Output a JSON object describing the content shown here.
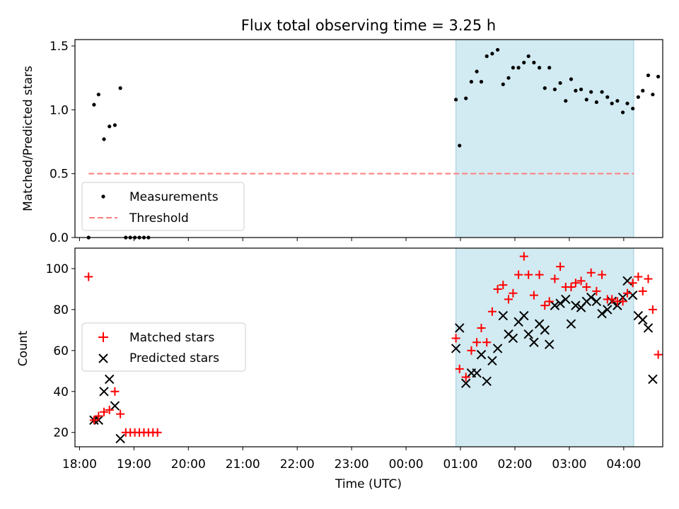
{
  "title": "Flux total observing time = 3.25 h",
  "colors": {
    "measurement": "#000000",
    "threshold": "#ff7f7f",
    "matched": "#ff0000",
    "predicted": "#000000",
    "shade": "#add8e6"
  },
  "chart_data": [
    {
      "type": "scatter",
      "panel": "top",
      "ylabel": "Matched/Predicted stars",
      "xlabel": "",
      "ylim": [
        0,
        1.55
      ],
      "yticks": [
        "0.0",
        "0.5",
        "1.0",
        "1.5"
      ],
      "shaded_region": [
        "00:55",
        "04:11"
      ],
      "threshold": {
        "name": "Threshold",
        "value": 0.5,
        "x_range": [
          "18:10",
          "04:11"
        ]
      },
      "legend": {
        "placement": "lower-left",
        "entries": [
          "Measurements",
          "Threshold"
        ]
      },
      "series": [
        {
          "name": "Measurements",
          "points": [
            [
              "18:10",
              0.0
            ],
            [
              "18:16",
              1.04
            ],
            [
              "18:21",
              1.12
            ],
            [
              "18:27",
              0.77
            ],
            [
              "18:33",
              0.87
            ],
            [
              "18:39",
              0.88
            ],
            [
              "18:45",
              1.17
            ],
            [
              "18:51",
              0.0
            ],
            [
              "18:56",
              0.0
            ],
            [
              "19:01",
              0.0
            ],
            [
              "19:06",
              0.0
            ],
            [
              "19:11",
              0.0
            ],
            [
              "19:16",
              0.0
            ],
            [
              "00:55",
              1.08
            ],
            [
              "00:59",
              0.72
            ],
            [
              "01:06",
              1.09
            ],
            [
              "01:12",
              1.22
            ],
            [
              "01:18",
              1.3
            ],
            [
              "01:23",
              1.22
            ],
            [
              "01:29",
              1.42
            ],
            [
              "01:35",
              1.44
            ],
            [
              "01:41",
              1.47
            ],
            [
              "01:47",
              1.2
            ],
            [
              "01:53",
              1.25
            ],
            [
              "01:58",
              1.33
            ],
            [
              "02:04",
              1.33
            ],
            [
              "02:10",
              1.37
            ],
            [
              "02:15",
              1.42
            ],
            [
              "02:21",
              1.37
            ],
            [
              "02:27",
              1.33
            ],
            [
              "02:33",
              1.17
            ],
            [
              "02:38",
              1.33
            ],
            [
              "02:44",
              1.16
            ],
            [
              "02:50",
              1.21
            ],
            [
              "02:56",
              1.07
            ],
            [
              "03:02",
              1.24
            ],
            [
              "03:07",
              1.15
            ],
            [
              "03:13",
              1.16
            ],
            [
              "03:19",
              1.08
            ],
            [
              "03:24",
              1.14
            ],
            [
              "03:30",
              1.06
            ],
            [
              "03:36",
              1.14
            ],
            [
              "03:42",
              1.1
            ],
            [
              "03:47",
              1.05
            ],
            [
              "03:53",
              1.07
            ],
            [
              "03:59",
              0.98
            ],
            [
              "04:04",
              1.05
            ],
            [
              "04:10",
              1.01
            ],
            [
              "04:16",
              1.1
            ],
            [
              "04:21",
              1.15
            ],
            [
              "04:27",
              1.27
            ],
            [
              "04:32",
              1.12
            ],
            [
              "04:38",
              1.26
            ]
          ]
        }
      ]
    },
    {
      "type": "scatter",
      "panel": "bottom",
      "ylabel": "Count",
      "xlabel": "Time (UTC)",
      "ylim": [
        13,
        110
      ],
      "yticks": [
        "20",
        "40",
        "60",
        "80",
        "100"
      ],
      "xticks": [
        "18:00",
        "19:00",
        "20:00",
        "21:00",
        "22:00",
        "23:00",
        "00:00",
        "01:00",
        "02:00",
        "03:00",
        "04:00"
      ],
      "shaded_region": [
        "00:55",
        "04:11"
      ],
      "legend": {
        "placement": "center-left",
        "entries": [
          "Matched stars",
          "Predicted stars"
        ]
      },
      "series": [
        {
          "name": "Matched stars",
          "marker": "+",
          "points": [
            [
              "18:10",
              96
            ],
            [
              "18:16",
              26
            ],
            [
              "18:21",
              28
            ],
            [
              "18:27",
              30
            ],
            [
              "18:33",
              31
            ],
            [
              "18:39",
              40
            ],
            [
              "18:45",
              29
            ],
            [
              "18:51",
              20
            ],
            [
              "18:56",
              20
            ],
            [
              "19:01",
              20
            ],
            [
              "19:06",
              20
            ],
            [
              "19:11",
              20
            ],
            [
              "19:16",
              20
            ],
            [
              "19:21",
              20
            ],
            [
              "19:26",
              20
            ],
            [
              "00:55",
              66
            ],
            [
              "00:59",
              51
            ],
            [
              "01:06",
              47
            ],
            [
              "01:12",
              60
            ],
            [
              "01:18",
              64
            ],
            [
              "01:23",
              71
            ],
            [
              "01:29",
              64
            ],
            [
              "01:35",
              79
            ],
            [
              "01:41",
              90
            ],
            [
              "01:47",
              92
            ],
            [
              "01:53",
              85
            ],
            [
              "01:58",
              88
            ],
            [
              "02:04",
              97
            ],
            [
              "02:10",
              106
            ],
            [
              "02:15",
              97
            ],
            [
              "02:21",
              87
            ],
            [
              "02:27",
              97
            ],
            [
              "02:33",
              82
            ],
            [
              "02:38",
              84
            ],
            [
              "02:44",
              95
            ],
            [
              "02:50",
              101
            ],
            [
              "02:56",
              91
            ],
            [
              "03:02",
              91
            ],
            [
              "03:07",
              93
            ],
            [
              "03:13",
              94
            ],
            [
              "03:19",
              91
            ],
            [
              "03:24",
              98
            ],
            [
              "03:30",
              89
            ],
            [
              "03:36",
              97
            ],
            [
              "03:42",
              85
            ],
            [
              "03:47",
              85
            ],
            [
              "03:53",
              84
            ],
            [
              "03:59",
              84
            ],
            [
              "04:04",
              88
            ],
            [
              "04:10",
              93
            ],
            [
              "04:16",
              96
            ],
            [
              "04:21",
              89
            ],
            [
              "04:27",
              95
            ],
            [
              "04:32",
              80
            ],
            [
              "04:38",
              58
            ]
          ]
        },
        {
          "name": "Predicted stars",
          "marker": "x",
          "points": [
            [
              "18:16",
              26
            ],
            [
              "18:21",
              26
            ],
            [
              "18:27",
              40
            ],
            [
              "18:33",
              46
            ],
            [
              "18:39",
              33
            ],
            [
              "18:45",
              17
            ],
            [
              "00:55",
              61
            ],
            [
              "00:59",
              71
            ],
            [
              "01:06",
              44
            ],
            [
              "01:12",
              49
            ],
            [
              "01:18",
              49
            ],
            [
              "01:23",
              58
            ],
            [
              "01:29",
              45
            ],
            [
              "01:35",
              55
            ],
            [
              "01:41",
              61
            ],
            [
              "01:47",
              77
            ],
            [
              "01:53",
              68
            ],
            [
              "01:58",
              66
            ],
            [
              "02:04",
              74
            ],
            [
              "02:10",
              77
            ],
            [
              "02:15",
              68
            ],
            [
              "02:21",
              64
            ],
            [
              "02:27",
              73
            ],
            [
              "02:33",
              70
            ],
            [
              "02:38",
              63
            ],
            [
              "02:44",
              82
            ],
            [
              "02:50",
              83
            ],
            [
              "02:56",
              85
            ],
            [
              "03:02",
              73
            ],
            [
              "03:07",
              82
            ],
            [
              "03:13",
              81
            ],
            [
              "03:19",
              84
            ],
            [
              "03:24",
              86
            ],
            [
              "03:30",
              84
            ],
            [
              "03:36",
              78
            ],
            [
              "03:42",
              80
            ],
            [
              "03:47",
              84
            ],
            [
              "03:53",
              82
            ],
            [
              "03:59",
              86
            ],
            [
              "04:04",
              94
            ],
            [
              "04:10",
              87
            ],
            [
              "04:16",
              77
            ],
            [
              "04:21",
              75
            ],
            [
              "04:27",
              71
            ],
            [
              "04:32",
              46
            ]
          ]
        }
      ]
    }
  ]
}
